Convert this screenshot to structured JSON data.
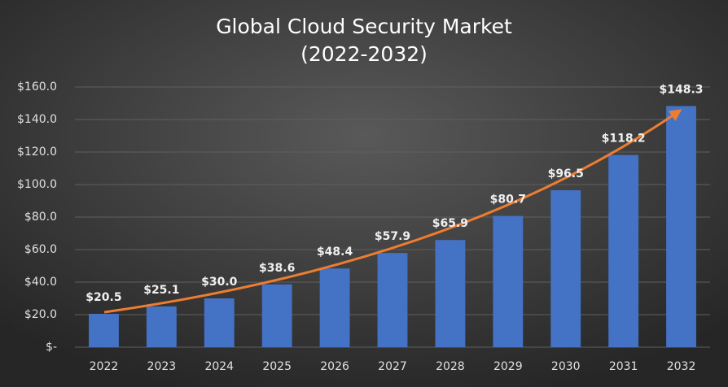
{
  "chart_data": {
    "type": "bar",
    "title": "Global Cloud Security Market",
    "subtitle": "(2022-2032)",
    "categories": [
      "2022",
      "2023",
      "2024",
      "2025",
      "2026",
      "2027",
      "2028",
      "2029",
      "2030",
      "2031",
      "2032"
    ],
    "values": [
      20.5,
      25.1,
      30.0,
      38.6,
      48.4,
      57.9,
      65.9,
      80.7,
      96.5,
      118.2,
      148.3
    ],
    "value_labels": [
      "$20.5",
      "$25.1",
      "$30.0",
      "$38.6",
      "$48.4",
      "$57.9",
      "$65.9",
      "$80.7",
      "$96.5",
      "$118.2",
      "$148.3"
    ],
    "color": "#4472c4",
    "ylim": [
      0,
      160
    ],
    "yticks": [
      {
        "value": 0,
        "label": "$-"
      },
      {
        "value": 20,
        "label": "$20.0"
      },
      {
        "value": 40,
        "label": "$40.0"
      },
      {
        "value": 60,
        "label": "$60.0"
      },
      {
        "value": 80,
        "label": "$80.0"
      },
      {
        "value": 100,
        "label": "$100.0"
      },
      {
        "value": 120,
        "label": "$120.0"
      },
      {
        "value": 140,
        "label": "$140.0"
      },
      {
        "value": 160,
        "label": "$160.0"
      }
    ],
    "grid": true
  }
}
